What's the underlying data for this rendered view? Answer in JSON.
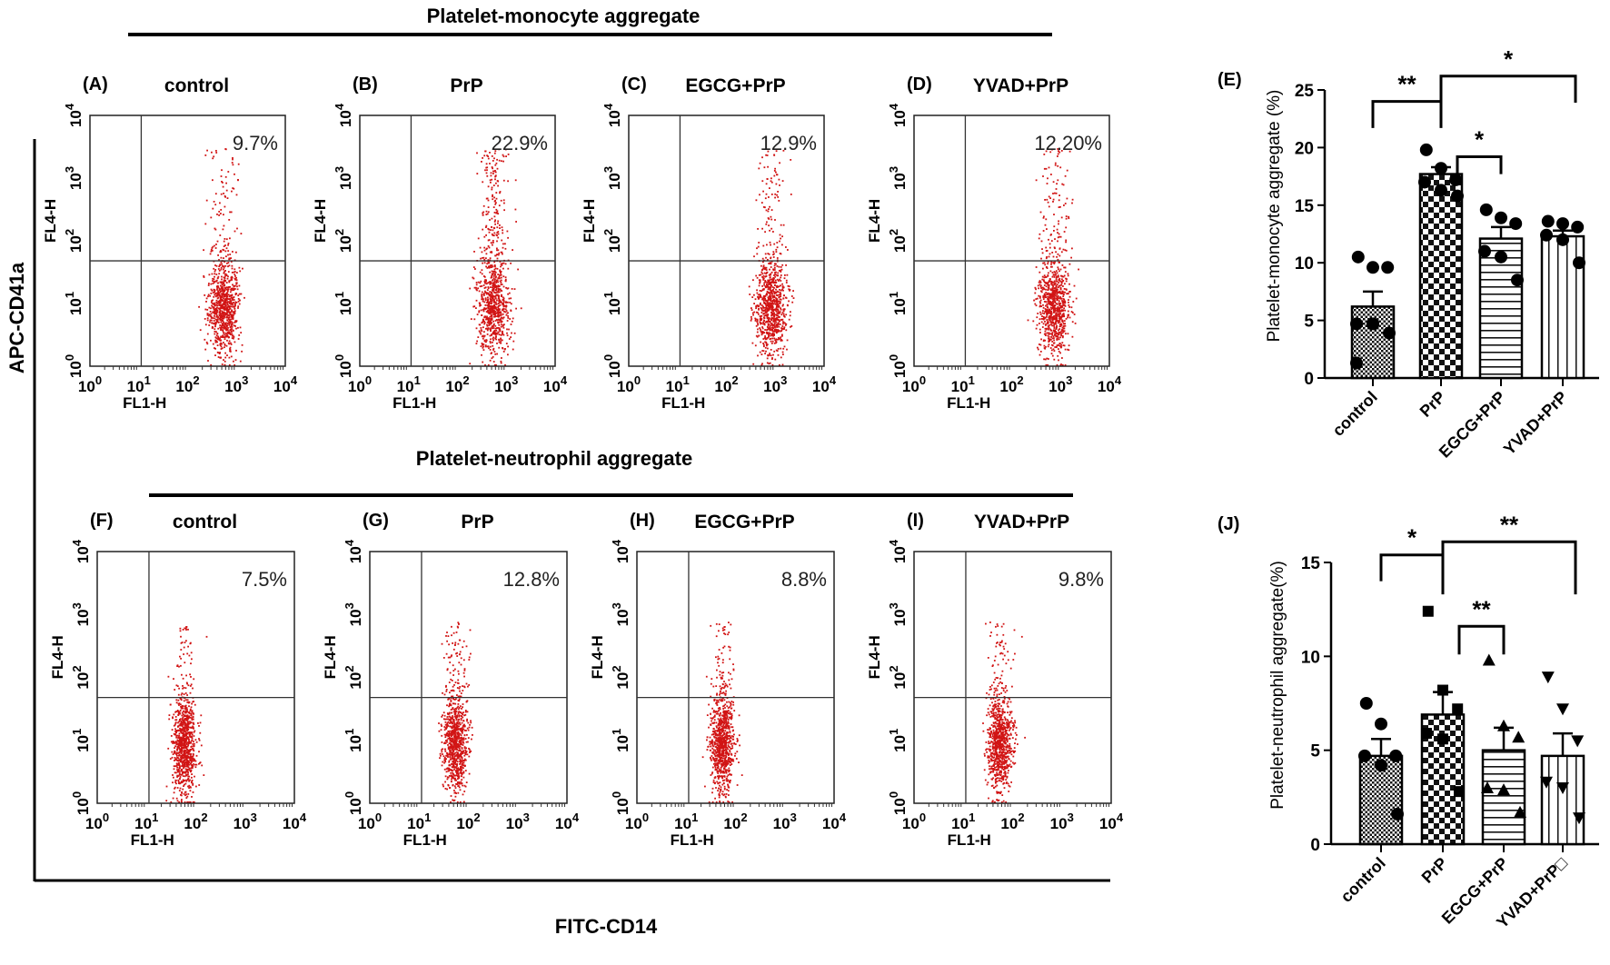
{
  "figure": {
    "top_title": "Platelet-monocyte aggregate",
    "bottom_title": "Platelet-neutrophil aggregate",
    "y_label": "APC-CD41a",
    "x_label": "FITC-CD14"
  },
  "flow_panels": [
    {
      "letter": "(A)",
      "condition": "control",
      "percent": "9.7%"
    },
    {
      "letter": "(B)",
      "condition": "PrP",
      "percent": "22.9%"
    },
    {
      "letter": "(C)",
      "condition": "EGCG+PrP",
      "percent": "12.9%"
    },
    {
      "letter": "(D)",
      "condition": "YVAD+PrP",
      "percent": "12.20%"
    },
    {
      "letter": "(F)",
      "condition": "control",
      "percent": "7.5%"
    },
    {
      "letter": "(G)",
      "condition": "PrP",
      "percent": "12.8%"
    },
    {
      "letter": "(H)",
      "condition": "EGCG+PrP",
      "percent": "8.8%"
    },
    {
      "letter": "(I)",
      "condition": "YVAD+PrP",
      "percent": "9.8%"
    }
  ],
  "flow_axes": {
    "x_label": "FL1-H",
    "y_label": "FL4-H",
    "tick_base": "10",
    "tick_exponents": [
      "0",
      "1",
      "2",
      "3",
      "4"
    ]
  },
  "chart_data": [
    {
      "type": "bar",
      "panel": "(E)",
      "title": "",
      "ylabel": "Platelet-monocyte aggregate (%)",
      "xlabel": "",
      "ylim": [
        0,
        25
      ],
      "yticks": [
        "0",
        "5",
        "10",
        "15",
        "20",
        "25"
      ],
      "categories": [
        "control",
        "PrP",
        "EGCG+PrP",
        "YVAD+PrP"
      ],
      "values": [
        6.2,
        17.7,
        12.1,
        12.3
      ],
      "sem": [
        1.3,
        0.6,
        1.0,
        0.5
      ],
      "points": [
        [
          10.5,
          9.6,
          9.6,
          4.7,
          4.7,
          3.9,
          1.3
        ],
        [
          19.8,
          18.2,
          17.2,
          17.0,
          16.3,
          15.8
        ],
        [
          14.6,
          13.9,
          13.4,
          11.0,
          10.5,
          8.5
        ],
        [
          13.6,
          13.4,
          13.1,
          12.4,
          12.0,
          10.0
        ]
      ],
      "point_shape": "circle",
      "significance": [
        {
          "from": 0,
          "to": 1,
          "top": 24.0,
          "leg": 21.7,
          "label": "**"
        },
        {
          "from": 1,
          "to": 3,
          "top": 26.2,
          "leg": 23.9,
          "label": "*"
        },
        {
          "from": 1,
          "to": 2,
          "top": 19.2,
          "leg": 17.7,
          "label": "*"
        }
      ]
    },
    {
      "type": "bar",
      "panel": "(J)",
      "title": "",
      "ylabel": "Platelet-neutrophil aggregate(%)",
      "xlabel": "",
      "ylim": [
        0,
        15
      ],
      "yticks": [
        "0",
        "5",
        "10",
        "15"
      ],
      "categories": [
        "control",
        "PrP",
        "EGCG+PrP",
        "YVAD+PrP□"
      ],
      "values": [
        4.7,
        6.9,
        5.0,
        4.7
      ],
      "sem": [
        0.9,
        1.2,
        1.2,
        1.2
      ],
      "points": [
        [
          7.5,
          6.4,
          4.7,
          4.7,
          4.2,
          1.6
        ],
        [
          12.4,
          8.2,
          7.2,
          5.9,
          5.6,
          2.8
        ],
        [
          9.8,
          6.3,
          5.7,
          3.0,
          2.9,
          1.7
        ],
        [
          8.9,
          7.2,
          5.5,
          3.3,
          3.0,
          1.4
        ]
      ],
      "point_shapes": [
        "circle",
        "square",
        "triangle-up",
        "triangle-down"
      ],
      "significance": [
        {
          "from": 0,
          "to": 1,
          "top": 15.4,
          "leg": 14.0,
          "label": "*"
        },
        {
          "from": 1,
          "to": 3,
          "top": 16.1,
          "leg": 13.3,
          "label": "**"
        },
        {
          "from": 1,
          "to": 2,
          "top": 11.6,
          "leg": 10.1,
          "label": "**"
        }
      ]
    }
  ]
}
